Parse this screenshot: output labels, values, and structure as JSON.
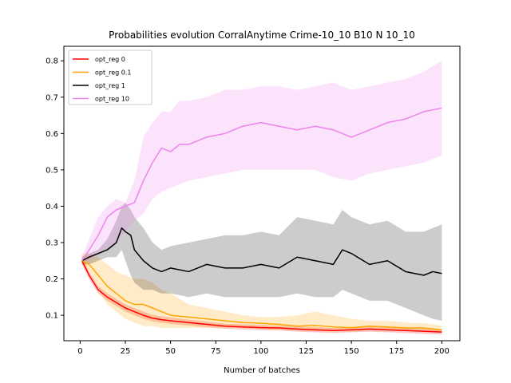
{
  "chart_data": {
    "type": "line",
    "title": "Probabilities evolution CorralAnytime Crime-10_10 B10 N 10_10",
    "xlabel": "Number of batches",
    "ylabel": "",
    "xlim": [
      -9,
      210
    ],
    "ylim": [
      0.03,
      0.84
    ],
    "xticks": [
      0,
      25,
      50,
      75,
      100,
      125,
      150,
      175,
      200
    ],
    "yticks": [
      0.1,
      0.2,
      0.3,
      0.4,
      0.5,
      0.6,
      0.7,
      0.8
    ],
    "grid": false,
    "legend_position": "top-left",
    "series": [
      {
        "name": "opt_reg 0",
        "color": "#ff0000",
        "x": [
          1,
          5,
          10,
          15,
          20,
          25,
          30,
          35,
          40,
          45,
          50,
          60,
          70,
          80,
          90,
          100,
          110,
          120,
          130,
          140,
          150,
          160,
          170,
          180,
          190,
          200
        ],
        "values": [
          0.25,
          0.21,
          0.17,
          0.15,
          0.135,
          0.12,
          0.11,
          0.1,
          0.092,
          0.088,
          0.085,
          0.08,
          0.075,
          0.07,
          0.068,
          0.066,
          0.065,
          0.062,
          0.06,
          0.058,
          0.06,
          0.062,
          0.06,
          0.058,
          0.056,
          0.054
        ],
        "lower": [
          0.24,
          0.2,
          0.16,
          0.14,
          0.125,
          0.11,
          0.1,
          0.09,
          0.083,
          0.079,
          0.076,
          0.072,
          0.067,
          0.063,
          0.061,
          0.059,
          0.058,
          0.055,
          0.053,
          0.051,
          0.053,
          0.055,
          0.053,
          0.051,
          0.049,
          0.047
        ],
        "upper": [
          0.26,
          0.22,
          0.18,
          0.16,
          0.145,
          0.13,
          0.12,
          0.11,
          0.101,
          0.097,
          0.094,
          0.088,
          0.083,
          0.077,
          0.075,
          0.073,
          0.072,
          0.069,
          0.067,
          0.065,
          0.067,
          0.069,
          0.067,
          0.065,
          0.063,
          0.061
        ]
      },
      {
        "name": "opt_reg 0.1",
        "color": "#ffa500",
        "x": [
          1,
          5,
          10,
          15,
          20,
          25,
          30,
          35,
          40,
          45,
          50,
          60,
          70,
          80,
          90,
          100,
          110,
          120,
          130,
          140,
          150,
          160,
          170,
          180,
          190,
          200
        ],
        "values": [
          0.25,
          0.24,
          0.21,
          0.18,
          0.16,
          0.14,
          0.13,
          0.13,
          0.12,
          0.11,
          0.1,
          0.095,
          0.09,
          0.085,
          0.08,
          0.078,
          0.075,
          0.07,
          0.072,
          0.068,
          0.066,
          0.07,
          0.068,
          0.065,
          0.065,
          0.06
        ],
        "lower": [
          0.24,
          0.22,
          0.17,
          0.13,
          0.11,
          0.09,
          0.08,
          0.07,
          0.07,
          0.065,
          0.065,
          0.065,
          0.065,
          0.065,
          0.065,
          0.062,
          0.06,
          0.058,
          0.056,
          0.056,
          0.055,
          0.058,
          0.057,
          0.056,
          0.055,
          0.052
        ],
        "upper": [
          0.27,
          0.27,
          0.26,
          0.24,
          0.22,
          0.21,
          0.2,
          0.2,
          0.19,
          0.17,
          0.16,
          0.13,
          0.12,
          0.11,
          0.1,
          0.095,
          0.095,
          0.1,
          0.11,
          0.1,
          0.09,
          0.085,
          0.085,
          0.08,
          0.078,
          0.072
        ]
      },
      {
        "name": "opt_reg 1",
        "color": "#000000",
        "x": [
          1,
          5,
          10,
          15,
          20,
          23,
          25,
          28,
          30,
          35,
          40,
          45,
          50,
          60,
          70,
          80,
          90,
          100,
          110,
          120,
          130,
          140,
          145,
          150,
          160,
          170,
          180,
          190,
          195,
          200
        ],
        "values": [
          0.25,
          0.26,
          0.27,
          0.28,
          0.3,
          0.34,
          0.33,
          0.32,
          0.28,
          0.25,
          0.23,
          0.22,
          0.23,
          0.22,
          0.24,
          0.23,
          0.23,
          0.24,
          0.23,
          0.26,
          0.25,
          0.24,
          0.28,
          0.27,
          0.24,
          0.25,
          0.22,
          0.21,
          0.22,
          0.215
        ],
        "lower": [
          0.24,
          0.24,
          0.25,
          0.26,
          0.26,
          0.28,
          0.25,
          0.21,
          0.19,
          0.17,
          0.17,
          0.16,
          0.16,
          0.15,
          0.16,
          0.15,
          0.15,
          0.15,
          0.15,
          0.16,
          0.15,
          0.15,
          0.17,
          0.16,
          0.14,
          0.14,
          0.12,
          0.1,
          0.09,
          0.085
        ],
        "upper": [
          0.26,
          0.27,
          0.28,
          0.31,
          0.36,
          0.4,
          0.41,
          0.39,
          0.37,
          0.34,
          0.3,
          0.28,
          0.29,
          0.3,
          0.31,
          0.32,
          0.32,
          0.33,
          0.32,
          0.37,
          0.36,
          0.35,
          0.39,
          0.37,
          0.35,
          0.36,
          0.33,
          0.33,
          0.34,
          0.35
        ]
      },
      {
        "name": "opt_reg 10",
        "color": "#ee82ee",
        "x": [
          1,
          5,
          10,
          15,
          20,
          25,
          30,
          35,
          40,
          45,
          50,
          55,
          60,
          70,
          80,
          90,
          100,
          110,
          120,
          130,
          140,
          150,
          160,
          170,
          180,
          190,
          200
        ],
        "values": [
          0.25,
          0.28,
          0.32,
          0.37,
          0.39,
          0.4,
          0.41,
          0.47,
          0.52,
          0.56,
          0.55,
          0.57,
          0.57,
          0.59,
          0.6,
          0.62,
          0.63,
          0.62,
          0.61,
          0.62,
          0.61,
          0.59,
          0.61,
          0.63,
          0.64,
          0.66,
          0.67
        ],
        "lower": [
          0.24,
          0.25,
          0.27,
          0.28,
          0.3,
          0.33,
          0.36,
          0.38,
          0.42,
          0.44,
          0.45,
          0.46,
          0.47,
          0.48,
          0.49,
          0.5,
          0.5,
          0.5,
          0.5,
          0.5,
          0.48,
          0.47,
          0.49,
          0.5,
          0.51,
          0.52,
          0.54
        ],
        "upper": [
          0.26,
          0.31,
          0.37,
          0.4,
          0.42,
          0.41,
          0.47,
          0.59,
          0.63,
          0.66,
          0.66,
          0.69,
          0.69,
          0.7,
          0.72,
          0.72,
          0.73,
          0.73,
          0.72,
          0.73,
          0.74,
          0.72,
          0.73,
          0.74,
          0.75,
          0.77,
          0.8
        ]
      }
    ]
  }
}
